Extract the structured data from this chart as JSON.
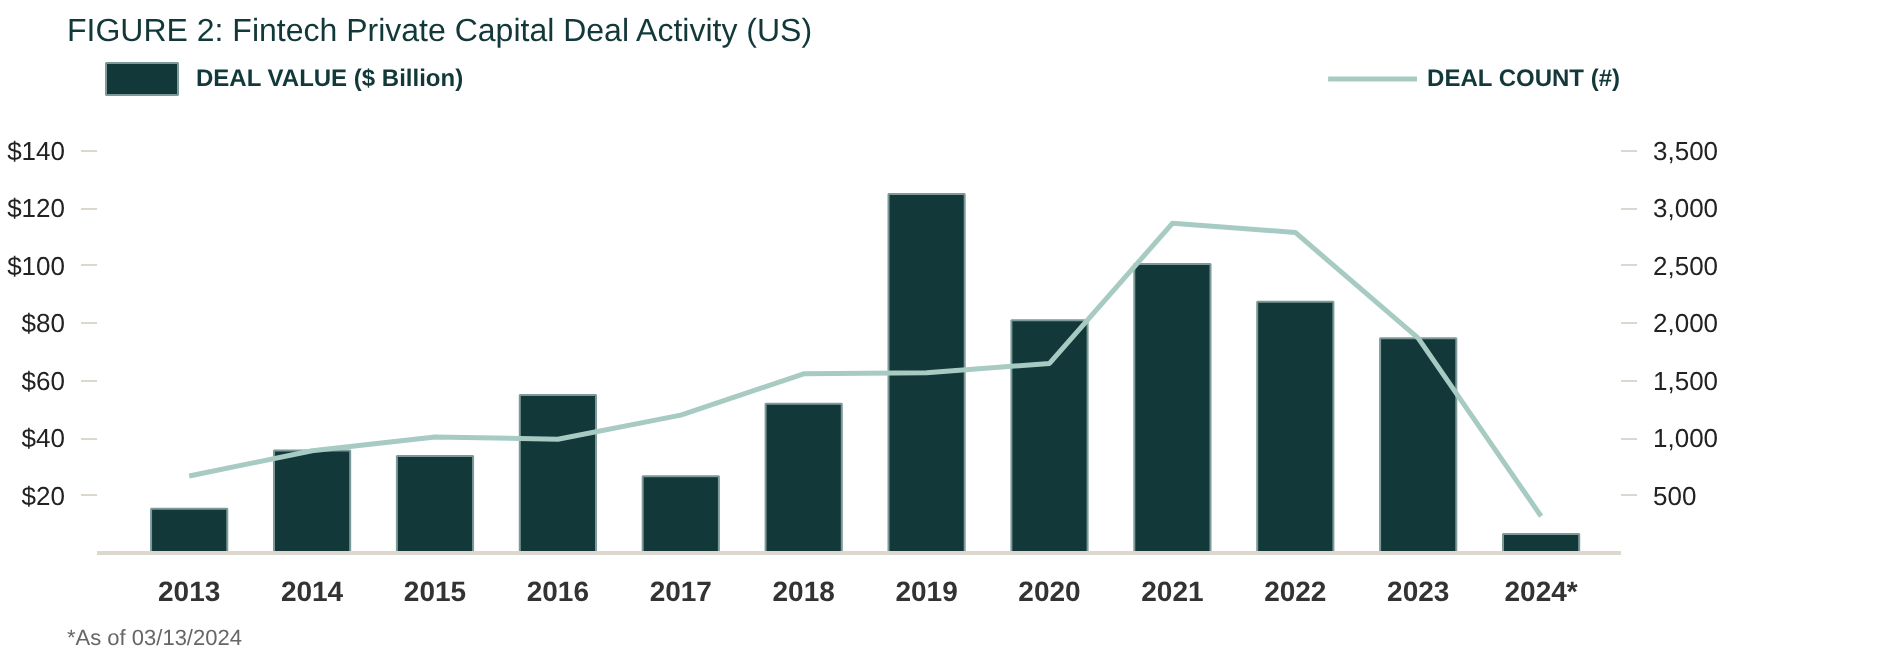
{
  "chart_data": {
    "type": "bar",
    "title": "FIGURE 2:  Fintech Private Capital Deal Activity (US)",
    "categories": [
      "2013",
      "2014",
      "2015",
      "2016",
      "2017",
      "2018",
      "2019",
      "2020",
      "2021",
      "2022",
      "2023",
      "2024*"
    ],
    "series": [
      {
        "name": "DEAL VALUE ($ Billion)",
        "color": "#12383a",
        "values": [
          15.4,
          35.7,
          33.8,
          55,
          26.7,
          52,
          125,
          81,
          100.6,
          87.5,
          74.8,
          6.6
        ]
      },
      {
        "name": "DEAL COUNT (#)",
        "type": "line",
        "axis": "y2",
        "color": "#a7cbc2",
        "values": [
          670,
          890,
          1010,
          990,
          1200,
          1560,
          1570,
          1650,
          2870,
          2790,
          1870,
          320
        ]
      }
    ],
    "ylim": [
      0,
      172
    ],
    "yticks": [
      {
        "value": 20,
        "label": "$20"
      },
      {
        "value": 40,
        "label": "$40"
      },
      {
        "value": 60,
        "label": "$60"
      },
      {
        "value": 80,
        "label": "$80"
      },
      {
        "value": 100,
        "label": "$100"
      },
      {
        "value": 120,
        "label": "$120"
      },
      {
        "value": 140,
        "label": "$140"
      }
    ],
    "y2lim": [
      0,
      4300
    ],
    "y2ticks": [
      {
        "value": 500,
        "label": "500"
      },
      {
        "value": 1000,
        "label": "1,000"
      },
      {
        "value": 1500,
        "label": "1,500"
      },
      {
        "value": 2000,
        "label": "2,000"
      },
      {
        "value": 2500,
        "label": "2,500"
      },
      {
        "value": 3000,
        "label": "3,000"
      },
      {
        "value": 3500,
        "label": "3,500"
      }
    ],
    "grid": false,
    "legend": "top",
    "marker": "none",
    "line_style": "solid",
    "annotations": [
      "*As of 03/13/2024"
    ]
  }
}
